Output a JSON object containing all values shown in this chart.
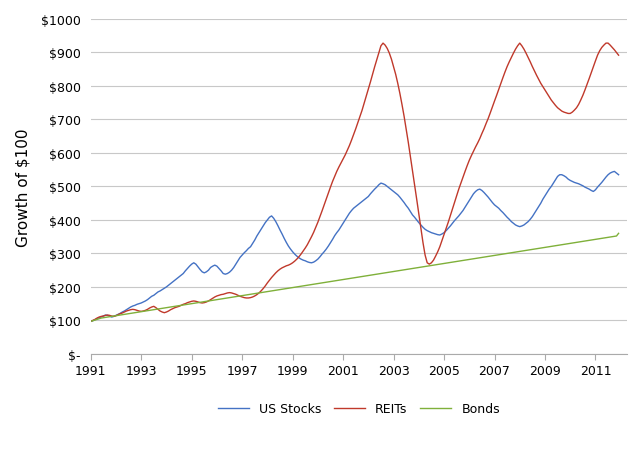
{
  "ylabel": "Growth of $100",
  "xlim_start": 1991.0,
  "xlim_end": 2012.25,
  "ylim": [
    0,
    1000
  ],
  "yticks": [
    0,
    100,
    200,
    300,
    400,
    500,
    600,
    700,
    800,
    900,
    1000
  ],
  "ytick_labels": [
    "$-",
    "$100",
    "$200",
    "$300",
    "$400",
    "$500",
    "$600",
    "$700",
    "$800",
    "$900",
    "$1000"
  ],
  "xticks": [
    1991,
    1993,
    1995,
    1997,
    1999,
    2001,
    2003,
    2005,
    2007,
    2009,
    2011
  ],
  "background_color": "#ffffff",
  "grid_color": "#c8c8c8",
  "line_colors": {
    "us_stocks": "#4472c4",
    "reits": "#c0392b",
    "bonds": "#7fb03a"
  },
  "figsize": [
    6.42,
    4.56
  ],
  "dpi": 100,
  "us_stocks": [
    97,
    99,
    102,
    105,
    108,
    110,
    113,
    116,
    115,
    113,
    110,
    112,
    115,
    118,
    121,
    125,
    128,
    132,
    136,
    140,
    143,
    145,
    148,
    150,
    152,
    155,
    158,
    162,
    167,
    172,
    175,
    180,
    185,
    188,
    192,
    196,
    200,
    205,
    210,
    215,
    220,
    225,
    230,
    235,
    240,
    248,
    255,
    262,
    268,
    272,
    268,
    260,
    252,
    245,
    242,
    245,
    250,
    258,
    262,
    265,
    262,
    255,
    248,
    240,
    238,
    240,
    244,
    250,
    258,
    268,
    278,
    288,
    295,
    302,
    308,
    315,
    320,
    330,
    340,
    352,
    362,
    372,
    382,
    392,
    400,
    408,
    412,
    405,
    395,
    383,
    370,
    358,
    345,
    333,
    322,
    313,
    305,
    298,
    292,
    287,
    283,
    280,
    278,
    275,
    273,
    272,
    274,
    278,
    283,
    290,
    298,
    305,
    313,
    322,
    332,
    342,
    353,
    362,
    370,
    380,
    390,
    400,
    410,
    420,
    428,
    435,
    440,
    445,
    450,
    455,
    460,
    465,
    470,
    478,
    485,
    492,
    498,
    505,
    510,
    508,
    505,
    500,
    495,
    490,
    485,
    480,
    475,
    468,
    460,
    452,
    443,
    435,
    425,
    415,
    408,
    400,
    392,
    385,
    378,
    372,
    368,
    365,
    362,
    360,
    358,
    356,
    355,
    358,
    362,
    368,
    375,
    382,
    390,
    398,
    405,
    412,
    420,
    428,
    438,
    448,
    458,
    468,
    478,
    485,
    490,
    492,
    488,
    482,
    475,
    468,
    460,
    452,
    445,
    440,
    435,
    428,
    422,
    415,
    408,
    402,
    395,
    390,
    385,
    382,
    380,
    382,
    385,
    390,
    395,
    402,
    410,
    420,
    430,
    440,
    450,
    462,
    472,
    482,
    492,
    500,
    510,
    520,
    530,
    535,
    535,
    532,
    528,
    522,
    518,
    515,
    512,
    510,
    508,
    505,
    502,
    498,
    495,
    492,
    488,
    485,
    490,
    498,
    505,
    512,
    520,
    528,
    535,
    540,
    543,
    545,
    540,
    535
  ],
  "reits": [
    97,
    100,
    103,
    107,
    110,
    112,
    113,
    115,
    116,
    115,
    113,
    112,
    114,
    117,
    120,
    122,
    125,
    128,
    130,
    132,
    133,
    132,
    130,
    128,
    127,
    128,
    130,
    133,
    137,
    140,
    142,
    138,
    133,
    128,
    125,
    123,
    125,
    128,
    132,
    135,
    138,
    140,
    142,
    145,
    148,
    150,
    153,
    155,
    157,
    158,
    157,
    155,
    153,
    152,
    153,
    155,
    158,
    162,
    166,
    170,
    173,
    175,
    177,
    178,
    180,
    182,
    183,
    182,
    180,
    178,
    175,
    172,
    170,
    168,
    167,
    167,
    168,
    170,
    173,
    177,
    182,
    188,
    195,
    203,
    212,
    220,
    228,
    235,
    242,
    248,
    253,
    257,
    260,
    263,
    265,
    268,
    272,
    277,
    283,
    290,
    298,
    307,
    316,
    326,
    338,
    350,
    363,
    378,
    393,
    410,
    427,
    445,
    462,
    480,
    498,
    515,
    530,
    545,
    558,
    570,
    582,
    594,
    608,
    622,
    638,
    655,
    672,
    690,
    708,
    727,
    748,
    768,
    790,
    812,
    835,
    857,
    878,
    900,
    920,
    928,
    922,
    912,
    898,
    880,
    858,
    835,
    808,
    778,
    745,
    710,
    672,
    632,
    590,
    548,
    505,
    462,
    418,
    375,
    332,
    295,
    272,
    268,
    272,
    280,
    292,
    305,
    320,
    338,
    355,
    373,
    393,
    413,
    433,
    453,
    473,
    492,
    510,
    528,
    545,
    562,
    578,
    592,
    605,
    618,
    630,
    643,
    658,
    672,
    688,
    703,
    720,
    738,
    755,
    772,
    790,
    808,
    825,
    842,
    858,
    872,
    885,
    898,
    910,
    920,
    928,
    920,
    910,
    898,
    885,
    872,
    858,
    845,
    832,
    820,
    808,
    798,
    788,
    778,
    768,
    758,
    750,
    742,
    735,
    730,
    725,
    722,
    720,
    718,
    718,
    722,
    728,
    735,
    745,
    758,
    772,
    788,
    805,
    822,
    840,
    858,
    875,
    892,
    905,
    915,
    922,
    928,
    928,
    922,
    915,
    908,
    900,
    892
  ],
  "bonds": [
    97,
    99,
    101,
    103,
    105,
    107,
    108,
    109,
    110,
    111,
    112,
    113,
    114,
    115,
    116,
    117,
    118,
    119,
    120,
    121,
    122,
    123,
    124,
    125,
    126,
    127,
    128,
    129,
    130,
    131,
    132,
    133,
    134,
    135,
    136,
    137,
    138,
    139,
    140,
    141,
    142,
    143,
    144,
    145,
    146,
    147,
    148,
    149,
    150,
    151,
    152,
    153,
    154,
    155,
    156,
    157,
    158,
    159,
    160,
    161,
    162,
    163,
    164,
    165,
    166,
    167,
    168,
    169,
    170,
    171,
    172,
    173,
    174,
    175,
    176,
    177,
    178,
    179,
    180,
    181,
    182,
    183,
    184,
    185,
    186,
    187,
    188,
    189,
    190,
    191,
    192,
    193,
    194,
    195,
    196,
    197,
    198,
    199,
    200,
    201,
    202,
    203,
    204,
    205,
    206,
    207,
    208,
    209,
    210,
    211,
    212,
    213,
    214,
    215,
    216,
    217,
    218,
    219,
    220,
    221,
    222,
    223,
    224,
    225,
    226,
    227,
    228,
    229,
    230,
    231,
    232,
    233,
    234,
    235,
    236,
    237,
    238,
    239,
    240,
    241,
    242,
    243,
    244,
    245,
    246,
    247,
    248,
    249,
    250,
    251,
    252,
    253,
    254,
    255,
    256,
    257,
    258,
    259,
    260,
    261,
    262,
    263,
    264,
    265,
    266,
    267,
    268,
    269,
    270,
    271,
    272,
    273,
    274,
    275,
    276,
    277,
    278,
    279,
    280,
    281,
    282,
    283,
    284,
    285,
    286,
    287,
    288,
    289,
    290,
    291,
    292,
    293,
    294,
    295,
    296,
    297,
    298,
    299,
    300,
    301,
    302,
    303,
    304,
    305,
    306,
    307,
    308,
    309,
    310,
    311,
    312,
    313,
    314,
    315,
    316,
    317,
    318,
    319,
    320,
    321,
    322,
    323,
    324,
    325,
    326,
    327,
    328,
    329,
    330,
    331,
    332,
    333,
    334,
    335,
    336,
    337,
    338,
    339,
    340,
    341,
    342,
    343,
    344,
    345,
    346,
    347,
    348,
    349,
    350,
    351,
    352,
    360
  ]
}
